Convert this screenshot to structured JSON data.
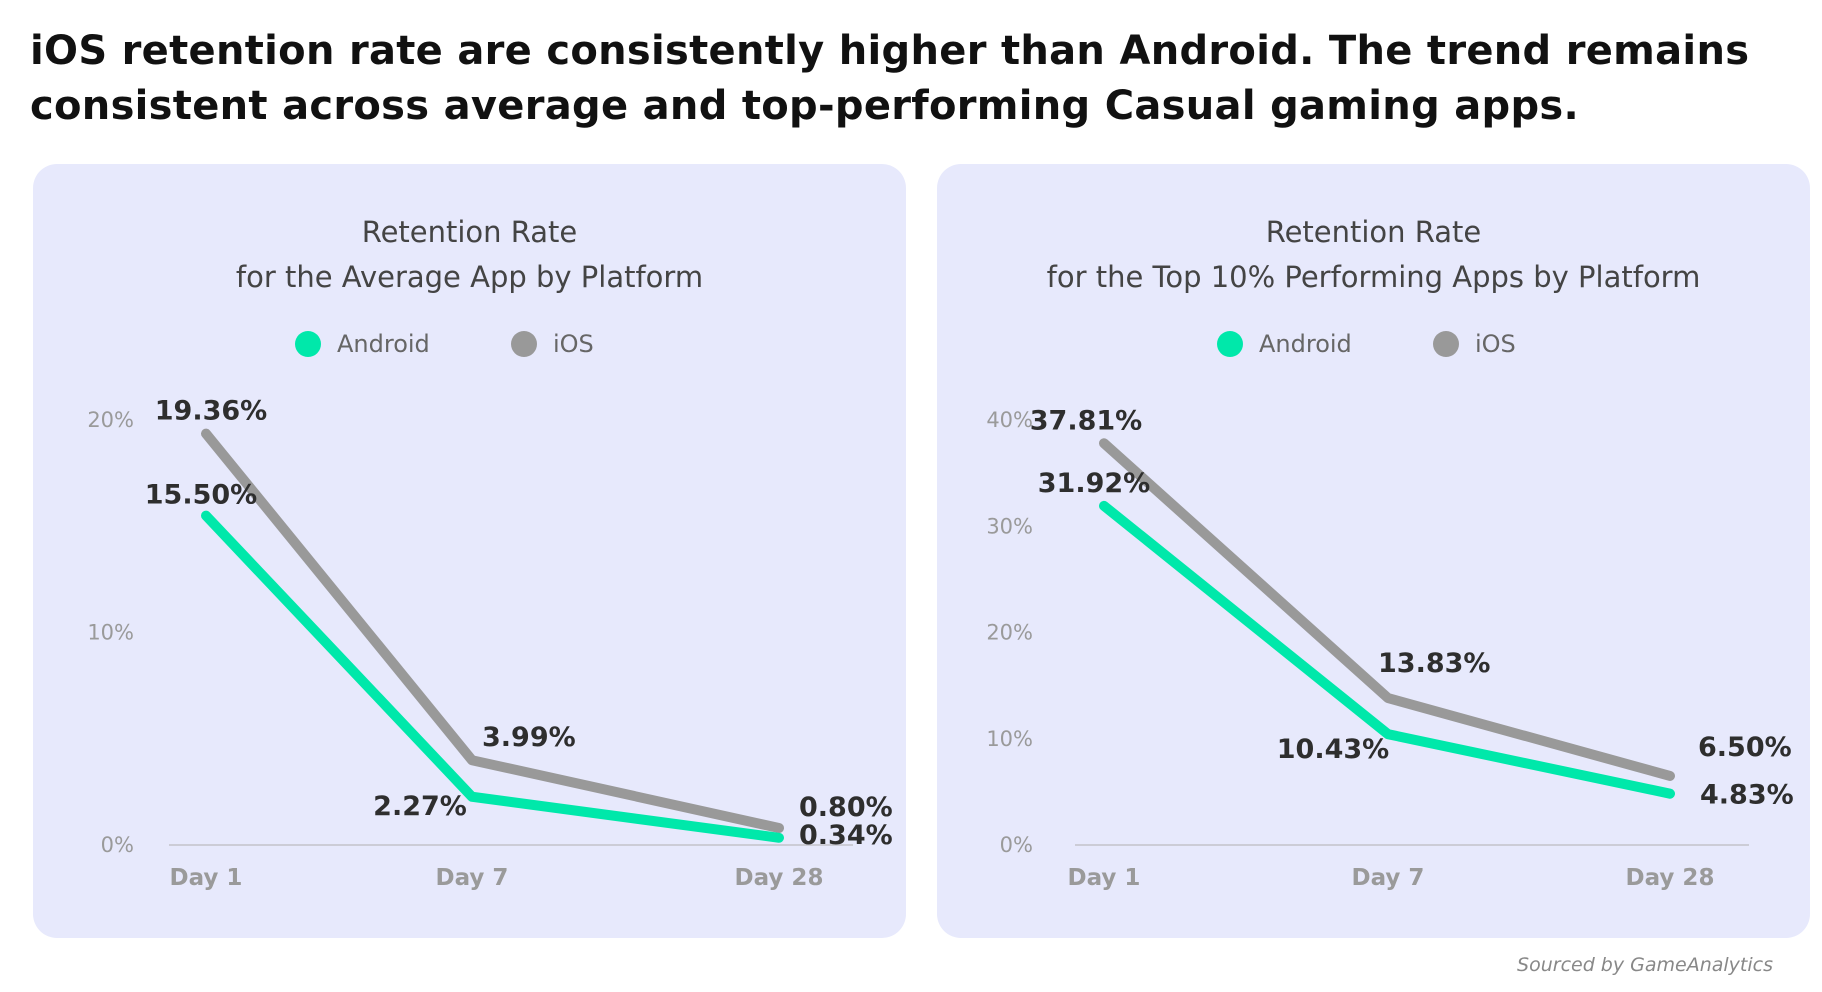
{
  "headline": [
    "iOS retention rate are consistently higher than Android. The trend remains",
    "consistent across average and top-performing Casual gaming apps."
  ],
  "source": "Sourced by GameAnalytics",
  "colors": {
    "android": "#00e8aa",
    "ios": "#999999",
    "panel_bg": "#e7e9fc"
  },
  "chart_data": [
    {
      "type": "line",
      "title": [
        "Retention Rate",
        "for the Average App by Platform"
      ],
      "categories": [
        "Day 1",
        "Day 7",
        "Day 28"
      ],
      "yticks": [
        "0%",
        "10%",
        "20%"
      ],
      "ylim": [
        0,
        20
      ],
      "legend": "top-center",
      "series": [
        {
          "name": "Android",
          "values": [
            15.5,
            2.27,
            0.34
          ],
          "labels": [
            "15.50%",
            "2.27%",
            "0.34%"
          ]
        },
        {
          "name": "iOS",
          "values": [
            19.36,
            3.99,
            0.8
          ],
          "labels": [
            "19.36%",
            "3.99%",
            "0.80%"
          ]
        }
      ]
    },
    {
      "type": "line",
      "title": [
        "Retention Rate",
        "for the Top 10% Performing Apps by Platform"
      ],
      "categories": [
        "Day 1",
        "Day 7",
        "Day 28"
      ],
      "yticks": [
        "0%",
        "10%",
        "20%",
        "30%",
        "40%"
      ],
      "ylim": [
        0,
        40
      ],
      "legend": "top-center",
      "series": [
        {
          "name": "Android",
          "values": [
            31.92,
            10.43,
            4.83
          ],
          "labels": [
            "31.92%",
            "10.43%",
            "4.83%"
          ]
        },
        {
          "name": "iOS",
          "values": [
            37.81,
            13.83,
            6.5
          ],
          "labels": [
            "37.81%",
            "13.83%",
            "6.50%"
          ]
        }
      ]
    }
  ]
}
